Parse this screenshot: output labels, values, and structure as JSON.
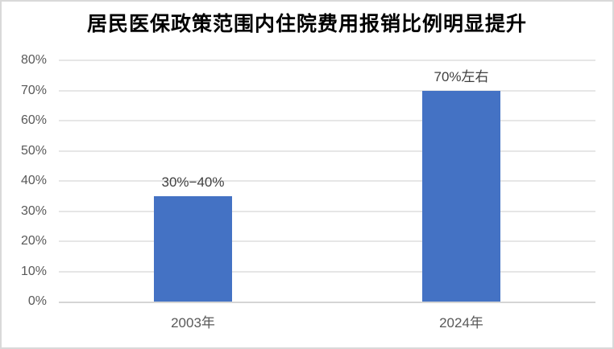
{
  "chart_data": {
    "type": "bar",
    "title": "居民医保政策范围内住院费用报销比例明显提升",
    "categories": [
      "2003年",
      "2024年"
    ],
    "values": [
      35,
      70
    ],
    "value_labels": [
      "30%−40%",
      "70%左右"
    ],
    "xlabel": "",
    "ylabel": "",
    "ylim": [
      0,
      80
    ],
    "yticks": [
      0,
      10,
      20,
      30,
      40,
      50,
      60,
      70,
      80
    ],
    "ytick_labels": [
      "0%",
      "10%",
      "20%",
      "30%",
      "40%",
      "50%",
      "60%",
      "70%",
      "80%"
    ],
    "grid": "horizontal",
    "legend": "none"
  },
  "colors": {
    "bar": "#4472C4",
    "gridline": "#E6E6E6",
    "axis_line": "#D5D5D5",
    "tick_text": "#595959",
    "label_text": "#404040",
    "title_text": "#000000",
    "frame_border": "#D9D9D9",
    "background": "#FFFFFF"
  }
}
